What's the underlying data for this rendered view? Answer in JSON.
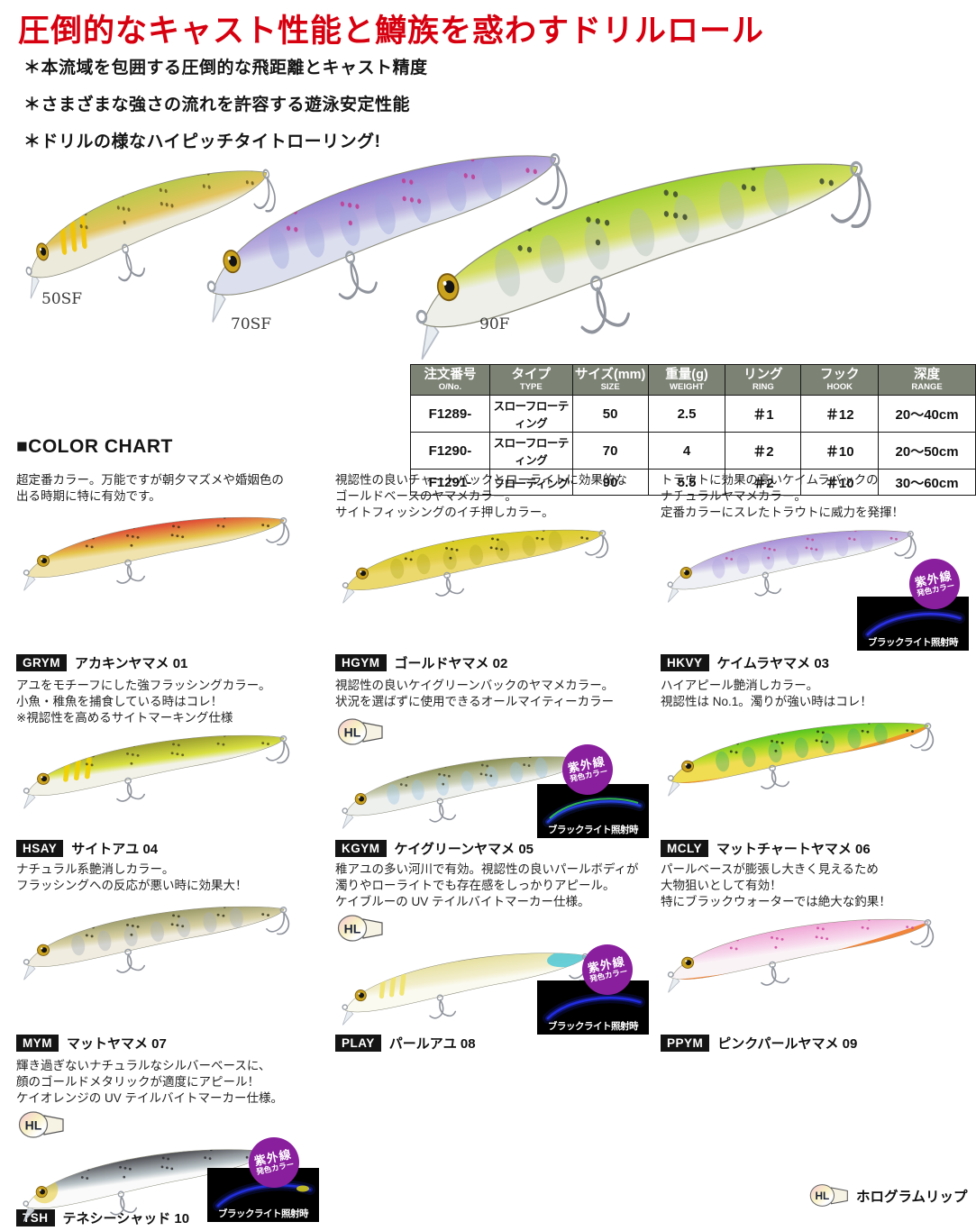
{
  "theme": {
    "accent_red": "#d6000f",
    "table_header_bg": "#7c8274",
    "code_badge_black": "#141414"
  },
  "page": {
    "headline": "圧倒的なキャスト性能と鱒族を惑わすドリルロール"
  },
  "features": [
    "＊本流域を包囲する圧倒的な飛距離とキャスト精度",
    "＊さまざまな強さの流れを許容する遊泳安定性能",
    "＊ドリルの様なハイピッチタイトローリング!"
  ],
  "hero": {
    "models": [
      {
        "label": "50SF",
        "colors": {
          "back": "#b9c94a",
          "mid": "#e2c35c",
          "belly": "#eceadb",
          "marks": "#f2c400",
          "spots": "#6a5a20"
        }
      },
      {
        "label": "70SF",
        "colors": {
          "back": "#8f7ed2",
          "mid": "#b9aede",
          "belly": "#dcdfee",
          "parr": "#9aa0dc",
          "spots": "#c23a90"
        }
      },
      {
        "label": "90F",
        "colors": {
          "back": "#9ed02f",
          "mid": "#d5de62",
          "belly": "#edefe8",
          "parr": "#aebdb2",
          "spots": "#39482e"
        }
      }
    ]
  },
  "spec_table": {
    "headers": [
      {
        "jp": "注文番号",
        "en": "O/No."
      },
      {
        "jp": "タイプ",
        "en": "TYPE"
      },
      {
        "jp": "サイズ(mm)",
        "en": "SIZE"
      },
      {
        "jp": "重量(g)",
        "en": "WEIGHT"
      },
      {
        "jp": "リング",
        "en": "RING"
      },
      {
        "jp": "フック",
        "en": "HOOK"
      },
      {
        "jp": "深度",
        "en": "RANGE"
      }
    ],
    "rows": [
      [
        "F1289-",
        "スローフローティング",
        "50",
        "2.5",
        "＃1",
        "＃12",
        "20～40cm"
      ],
      [
        "F1290-",
        "スローフローティング",
        "70",
        "4",
        "＃2",
        "＃10",
        "20～50cm"
      ],
      [
        "F1291-",
        "フローティング",
        "90",
        "5.5",
        "＃2",
        "＃10",
        "30～60cm"
      ]
    ]
  },
  "color_chart": {
    "heading": "■COLOR CHART",
    "hl_label": "HL",
    "uv_badge": {
      "line1": "紫外線",
      "line2": "発色カラー",
      "color": "#8a1f9e"
    },
    "blacklight_caption": "ブラックライト照射時",
    "legend": {
      "label": "HL",
      "text": "ホログラムリップ"
    },
    "items": [
      {
        "code": "GRYM",
        "name": "アカキンヤマメ 01",
        "desc": "超定番カラー。万能ですが朝夕マズメや婚姻色の\n出る時期に特に有効です。",
        "colors": {
          "back": "#e04434",
          "mid": "#e5c34a",
          "belly": "#f0e3ae",
          "spots": "#4c3018"
        }
      },
      {
        "code": "HGYM",
        "name": "ゴールドヤマメ 02",
        "desc": "視認性の良いチャートバックとローライトに効果的な\nゴールドベースのヤマメカラー。\nサイトフィッシングのイチ押しカラー。",
        "colors": {
          "back": "#d7cd1e",
          "mid": "#e3cf46",
          "belly": "#ecd96e",
          "spots": "#3c3a18",
          "parr": "#b7ad20"
        }
      },
      {
        "code": "HKVY",
        "name": "ケイムラヤマメ 03",
        "desc": "トラウトに効果の高いケイムラバックの\nナチュラルヤマメカラー。\n定番カラーにスレたトラウトに威力を発揮！",
        "uv": true,
        "glow": "#2b33ea",
        "colors": {
          "back": "#a78fd8",
          "mid": "#cbc2e6",
          "belly": "#eef0f5",
          "parr": "#b2a6e2",
          "spots": "#c04898"
        }
      },
      {
        "code": "HSAY",
        "name": "サイトアユ 04",
        "desc": "アユをモチーフにした強フラッシングカラー。\n小魚・稚魚を捕食している時はコレ！\n※視認性を高めるサイトマーキング仕様",
        "colors": {
          "back": "#9a9c2e",
          "mid": "#d8e040",
          "belly": "#f2f2e8",
          "marks": "#f0d000",
          "spots": "#55501e"
        }
      },
      {
        "code": "KGYM",
        "name": "ケイグリーンヤマメ 05",
        "desc": "視認性の良いケイグリーンバックのヤマメカラー。\n状況を選ばずに使用できるオールマイティーカラー",
        "hl": true,
        "uv": true,
        "glow": "#2742e2",
        "glow2": "#32c352",
        "colors": {
          "back": "#8a8f52",
          "mid": "#c9cdb2",
          "belly": "#eef0ee",
          "parr": "#9cc2e0",
          "spots": "#45462f"
        }
      },
      {
        "code": "MCLY",
        "name": "マットチャートヤマメ 06",
        "desc": "ハイアピール艶消しカラー。\n視認性は No.1。濁りが強い時はコレ！",
        "colors": {
          "back": "#54c61e",
          "mid": "#c4dc2e",
          "belly": "#f0dd52",
          "belly2": "#f09028",
          "spots": "#28371c",
          "parr": "#3fae6a"
        }
      },
      {
        "code": "MYM",
        "name": "マットヤマメ 07",
        "desc": "ナチュラル系艶消しカラー。\nフラッシングへの反応が悪い時に効果大！",
        "colors": {
          "back": "#9b9a68",
          "mid": "#d6cfa2",
          "belly": "#f0ecdf",
          "parr": "#a7b0b8",
          "spots": "#37371f"
        }
      },
      {
        "code": "PLAY",
        "name": "パールアユ 08",
        "desc": "稚アユの多い河川で有効。視認性の良いパールボディが\n濁りやローライトでも存在感をしっかりアピール。\nケイブルーの UV テイルバイトマーカー仕様。",
        "hl": true,
        "uv": true,
        "glow": "#222ee8",
        "colors": {
          "back": "#e7e0a0",
          "mid": "#f2eecc",
          "belly": "#fafaf0",
          "tail": "#4fc8d8",
          "marks": "#efe268"
        }
      },
      {
        "code": "PPYM",
        "name": "ピンクパールヤマメ 09",
        "desc": "パールベースが膨張し大きく見えるため\n大物狙いとして有効！\n特にブラックウォーターでは絶大な釣果！",
        "colors": {
          "back": "#f0a6d6",
          "mid": "#f7d9ec",
          "belly": "#faf3f6",
          "belly2": "#f08030",
          "spots": "#d048a0"
        }
      },
      {
        "code": "TSH",
        "name": "テネシーシャッド 10",
        "desc": "輝き過ぎないナチュラルなシルバーベースに、\n顔のゴールドメタリックが適度にアピール！\nケイオレンジの UV テイルバイトマーカー仕様。",
        "hl": true,
        "uv": true,
        "glow": "#2230e0",
        "glow3": "#c8c020",
        "colors": {
          "back": "#4c4c52",
          "mid": "#b8c2c6",
          "belly": "#fafafa",
          "head": "#e6c830",
          "spots": "#2c2c30"
        }
      }
    ]
  }
}
